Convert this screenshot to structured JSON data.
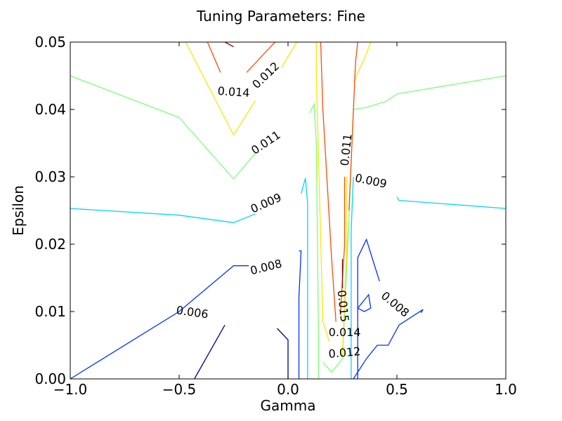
{
  "chart_data": {
    "type": "contour",
    "title": "Tuning Parameters: Fine",
    "xlabel": "Gamma",
    "ylabel": "Epsilon",
    "xlim": [
      -1.0,
      1.0
    ],
    "ylim": [
      0.0,
      0.05
    ],
    "xticks": [
      "−1.0",
      "−0.5",
      "0.0",
      "0.5",
      "1.0"
    ],
    "yticks": [
      "0.00",
      "0.01",
      "0.02",
      "0.03",
      "0.04",
      "0.05"
    ],
    "grid": false,
    "legend": "none",
    "contours": [
      {
        "level": "0.006",
        "color": "#00008f",
        "paths": [
          [
            [
              -0.43,
              0.0
            ],
            [
              -0.29,
              0.008
            ]
          ],
          [
            [
              -0.05,
              0.0075
            ],
            [
              0.0,
              0.0058
            ],
            [
              0.0,
              0.0
            ]
          ]
        ]
      },
      {
        "level": "0.008",
        "color": "#0030ff",
        "paths": [
          [
            [
              -1.0,
              0.0
            ],
            [
              -0.5,
              0.01
            ],
            [
              -0.25,
              0.0168
            ],
            [
              -0.18,
              0.0168
            ]
          ],
          [
            [
              0.05,
              0.0
            ],
            [
              0.05,
              0.012
            ],
            [
              0.06,
              0.019
            ],
            [
              0.05,
              0.019
            ]
          ],
          [
            [
              0.32,
              0.0
            ],
            [
              0.32,
              0.018
            ],
            [
              0.36,
              0.0207
            ],
            [
              0.42,
              0.0145
            ]
          ],
          [
            [
              0.3,
              0.0
            ],
            [
              0.36,
              0.003
            ],
            [
              0.41,
              0.005
            ],
            [
              0.46,
              0.005
            ],
            [
              0.51,
              0.008
            ],
            [
              0.62,
              0.0103
            ],
            [
              0.61,
              0.0098
            ]
          ],
          [
            [
              0.32,
              0.0105
            ],
            [
              0.37,
              0.0125
            ],
            [
              0.38,
              0.0105
            ],
            [
              0.35,
              0.01
            ],
            [
              0.32,
              0.0105
            ]
          ]
        ]
      },
      {
        "level": "0.009",
        "color": "#00d4ff",
        "paths": [
          [
            [
              -1.0,
              0.0253
            ],
            [
              -0.5,
              0.0243
            ],
            [
              -0.25,
              0.0232
            ],
            [
              -0.15,
              0.0245
            ]
          ],
          [
            [
              0.09,
              0.0
            ],
            [
              0.09,
              0.026
            ],
            [
              0.08,
              0.0298
            ],
            [
              0.06,
              0.0275
            ]
          ],
          [
            [
              0.29,
              0.0
            ],
            [
              0.29,
              0.022
            ],
            [
              0.3,
              0.03
            ]
          ],
          [
            [
              0.5,
              0.027
            ],
            [
              0.51,
              0.0265
            ],
            [
              1.0,
              0.0253
            ]
          ]
        ]
      },
      {
        "level": "0.011",
        "color": "#7dff7a",
        "paths": [
          [
            [
              -1.0,
              0.045
            ],
            [
              -0.5,
              0.0388
            ],
            [
              -0.25,
              0.0297
            ],
            [
              -0.15,
              0.0335
            ]
          ],
          [
            [
              0.14,
              0.0
            ],
            [
              0.14,
              0.006
            ],
            [
              0.13,
              0.035
            ],
            [
              0.12,
              0.0408
            ],
            [
              0.1,
              0.0395
            ]
          ],
          [
            [
              0.16,
              0.0025
            ],
            [
              0.2,
              0.001
            ],
            [
              0.25,
              0.003
            ],
            [
              0.28,
              0.024
            ],
            [
              0.3,
              0.04
            ],
            [
              0.36,
              0.0403
            ],
            [
              0.45,
              0.0412
            ],
            [
              0.5,
              0.0423
            ],
            [
              1.0,
              0.045
            ]
          ]
        ]
      },
      {
        "level": "0.012",
        "color": "#ffe600",
        "paths": [
          [
            [
              -0.47,
              0.05
            ],
            [
              -0.25,
              0.0362
            ],
            [
              -0.15,
              0.0413
            ]
          ],
          [
            [
              -0.03,
              0.0462
            ],
            [
              0.04,
              0.05
            ]
          ],
          [
            [
              0.25,
              0.0035
            ],
            [
              0.27,
              0.02
            ],
            [
              0.27,
              0.03
            ]
          ],
          [
            [
              0.19,
              0.0055
            ],
            [
              0.16,
              0.0085
            ],
            [
              0.13,
              0.045
            ],
            [
              0.13,
              0.05
            ]
          ],
          [
            [
              0.3,
              0.044
            ],
            [
              0.35,
              0.0475
            ],
            [
              0.38,
              0.05
            ]
          ]
        ]
      },
      {
        "level": "0.014",
        "color": "#ff4a00",
        "paths": [
          [
            [
              -0.37,
              0.05
            ],
            [
              -0.31,
              0.0455
            ]
          ],
          [
            [
              -0.19,
              0.0455
            ],
            [
              -0.06,
              0.05
            ]
          ],
          [
            [
              0.24,
              0.0095
            ],
            [
              0.26,
              0.02
            ],
            [
              0.26,
              0.03
            ]
          ],
          [
            [
              0.22,
              0.0085
            ],
            [
              0.2,
              0.018
            ],
            [
              0.16,
              0.04
            ],
            [
              0.15,
              0.05
            ]
          ],
          [
            [
              0.28,
              0.025
            ],
            [
              0.31,
              0.047
            ],
            [
              0.32,
              0.05
            ]
          ]
        ]
      },
      {
        "level": "0.015",
        "color": "#8f0000",
        "paths": [
          [
            [
              -0.25,
              0.0493
            ],
            [
              -0.29,
              0.05
            ]
          ],
          [
            [
              0.25,
              0.0135
            ],
            [
              0.25,
              0.0178
            ]
          ]
        ]
      }
    ],
    "contour_labels": [
      {
        "text": "0.006",
        "x": -0.44,
        "y": 0.0098,
        "rotate": 8
      },
      {
        "text": "0.008",
        "x": -0.1,
        "y": 0.0165,
        "rotate": -14
      },
      {
        "text": "0.008",
        "x": 0.49,
        "y": 0.011,
        "rotate": 40
      },
      {
        "text": "0.009",
        "x": -0.1,
        "y": 0.026,
        "rotate": -24
      },
      {
        "text": "0.009",
        "x": 0.38,
        "y": 0.0293,
        "rotate": 12
      },
      {
        "text": "0.011",
        "x": -0.1,
        "y": 0.035,
        "rotate": -34
      },
      {
        "text": "0.011",
        "x": 0.27,
        "y": 0.034,
        "rotate": -84
      },
      {
        "text": "0.012",
        "x": -0.1,
        "y": 0.045,
        "rotate": -44
      },
      {
        "text": "0.012",
        "x": 0.26,
        "y": 0.0038,
        "rotate": -5
      },
      {
        "text": "0.014",
        "x": -0.25,
        "y": 0.0425,
        "rotate": 4
      },
      {
        "text": "0.014",
        "x": 0.26,
        "y": 0.0068,
        "rotate": 0
      },
      {
        "text": "0.015",
        "x": 0.25,
        "y": 0.0108,
        "rotate": 84
      }
    ]
  }
}
